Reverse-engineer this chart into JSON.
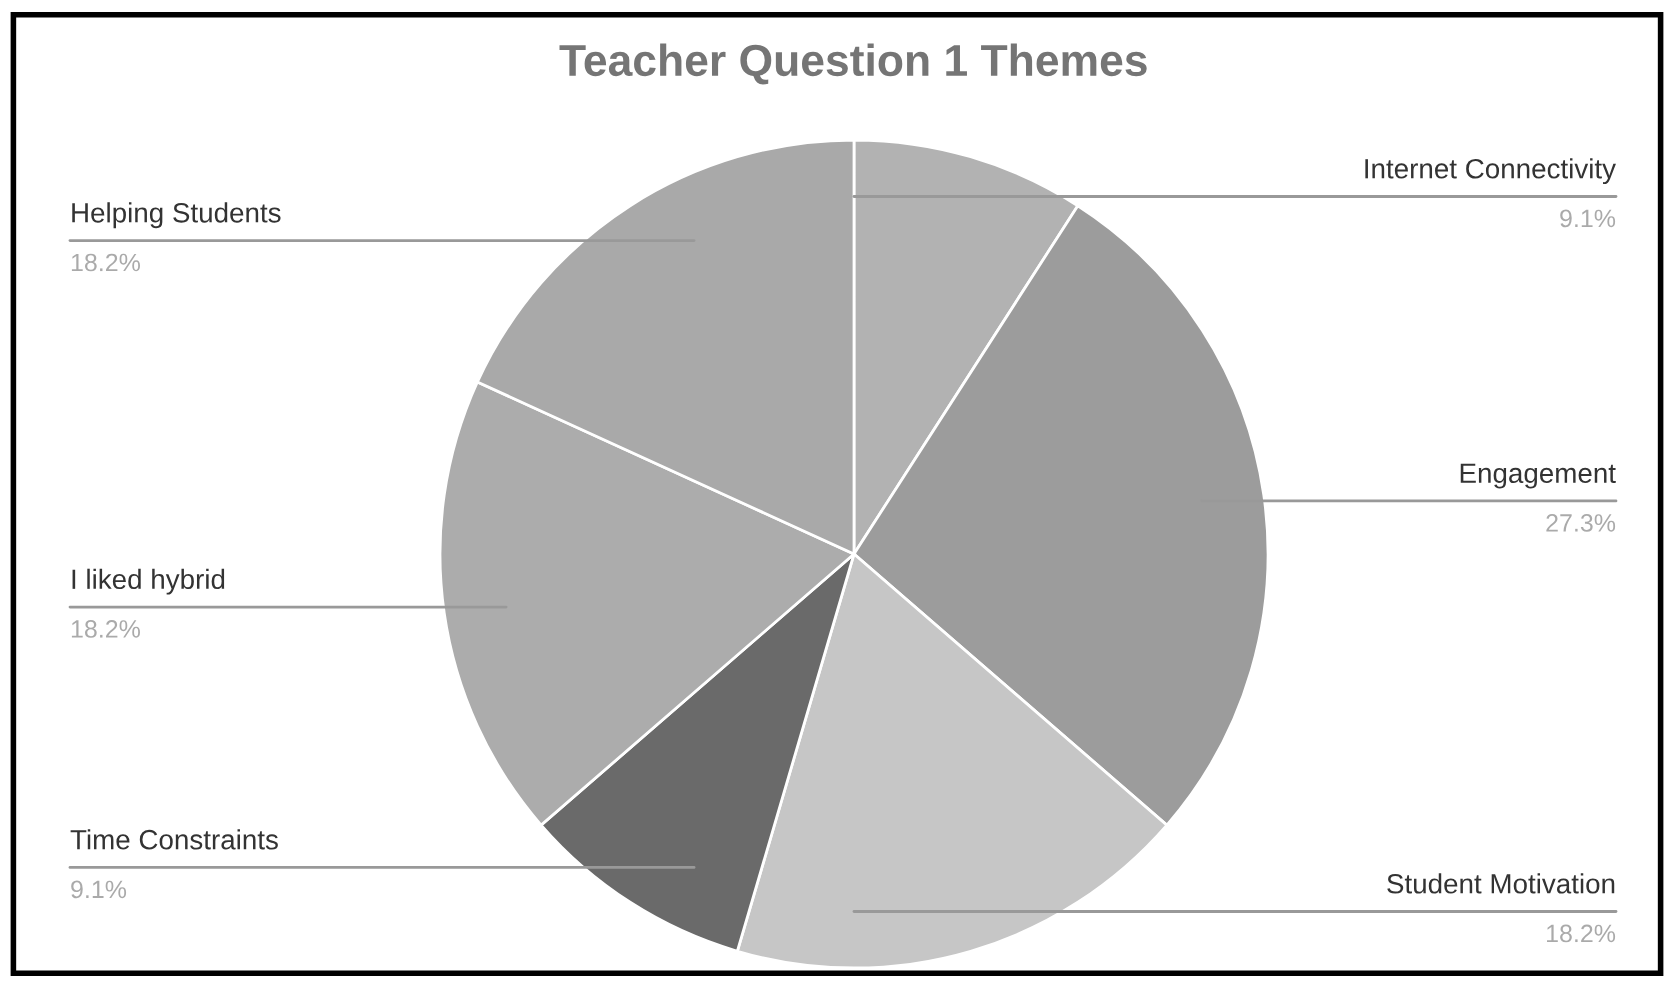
{
  "chart_data": {
    "type": "pie",
    "title": "Teacher Question 1 Themes",
    "categories": [
      "Internet Connectivity",
      "Engagement",
      "Student Motivation",
      "Time Constraints",
      "I liked hybrid",
      "Helping Students"
    ],
    "values": [
      9.1,
      27.3,
      18.2,
      9.1,
      18.2,
      18.2
    ],
    "value_labels": [
      "9.1%",
      "27.3%",
      "18.2%",
      "9.1%",
      "18.2%",
      "18.2%"
    ],
    "colors": [
      "#b2b2b2",
      "#9c9c9c",
      "#c6c6c6",
      "#6a6a6a",
      "#acacac",
      "#a9a9a9"
    ]
  }
}
